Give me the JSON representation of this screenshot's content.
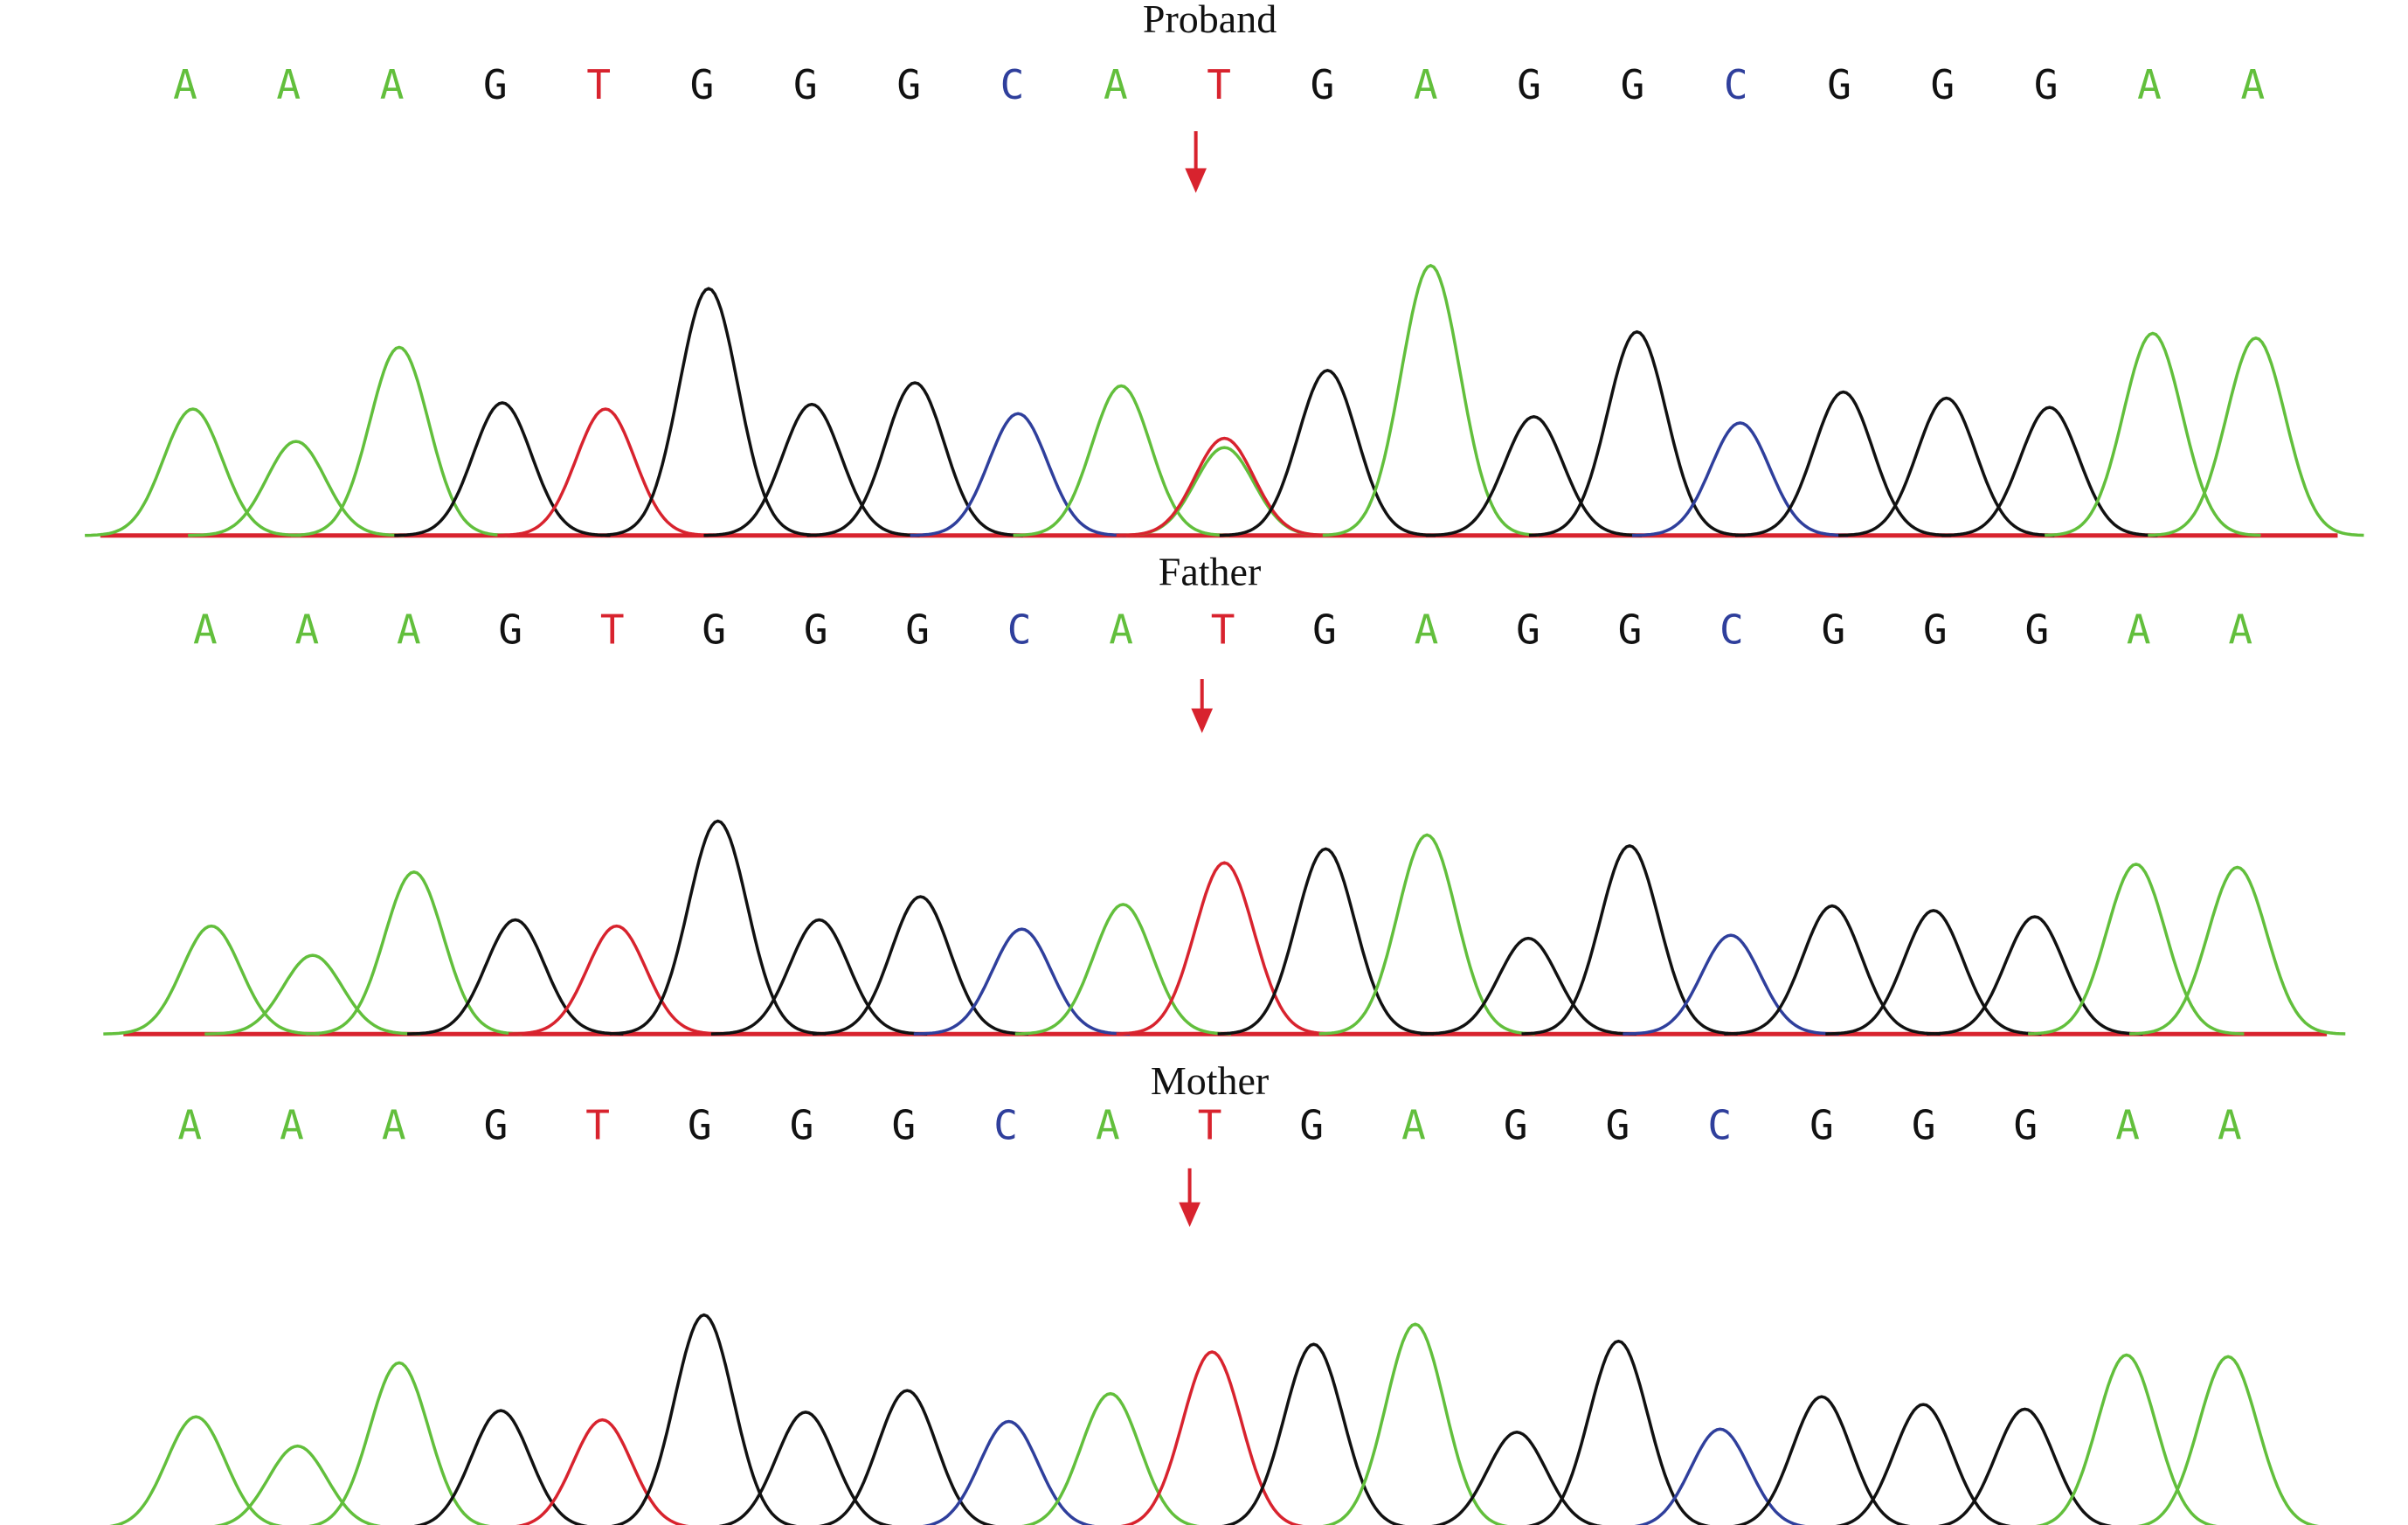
{
  "colors": {
    "A": "#62bf3c",
    "G": "#111111",
    "T": "#d8232e",
    "C": "#2f3f9c"
  },
  "panels": [
    {
      "title": "Proband",
      "bases": [
        "A",
        "A",
        "A",
        "G",
        "T",
        "G",
        "G",
        "G",
        "C",
        "A",
        "T",
        "G",
        "A",
        "G",
        "G",
        "C",
        "G",
        "G",
        "G",
        "A",
        "A"
      ],
      "peaks": [
        82,
        61,
        122,
        86,
        82,
        160,
        85,
        99,
        79,
        97,
        63,
        107,
        175,
        77,
        132,
        73,
        93,
        89,
        83,
        131,
        128
      ],
      "secondary_peaks": [
        {
          "position": 10,
          "color": "#62bf3c",
          "height": 57
        }
      ]
    },
    {
      "title": "Father",
      "bases": [
        "A",
        "A",
        "A",
        "G",
        "T",
        "G",
        "G",
        "G",
        "C",
        "A",
        "T",
        "G",
        "A",
        "G",
        "G",
        "C",
        "G",
        "G",
        "G",
        "A",
        "A"
      ],
      "peaks": [
        70,
        51,
        105,
        74,
        70,
        138,
        74,
        89,
        68,
        84,
        111,
        120,
        129,
        62,
        122,
        64,
        83,
        80,
        76,
        110,
        108
      ]
    },
    {
      "title": "Mother",
      "bases": [
        "A",
        "A",
        "A",
        "G",
        "T",
        "G",
        "G",
        "G",
        "C",
        "A",
        "T",
        "G",
        "A",
        "G",
        "G",
        "C",
        "G",
        "G",
        "G",
        "A",
        "A"
      ],
      "peaks": [
        72,
        53,
        107,
        76,
        70,
        138,
        75,
        89,
        69,
        87,
        114,
        119,
        132,
        62,
        121,
        64,
        85,
        80,
        77,
        112,
        111
      ]
    }
  ]
}
